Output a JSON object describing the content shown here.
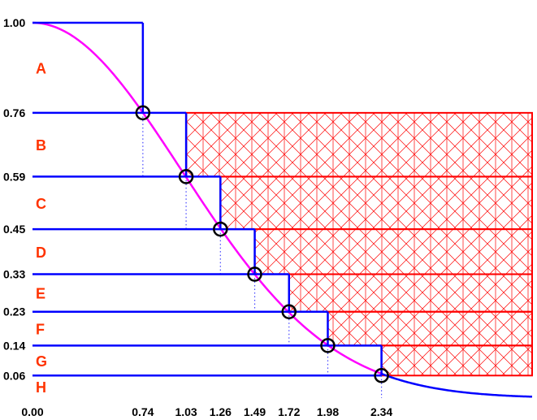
{
  "chart_data": {
    "type": "line",
    "title": "",
    "xlabel": "",
    "ylabel": "",
    "xlim": [
      0,
      3.35
    ],
    "ylim": [
      0,
      1.0
    ],
    "grid": false,
    "curve": {
      "name": "",
      "description_formula": "y = exp(-x^2/2)",
      "magenta_range": [
        0,
        2.34
      ],
      "blue_range": [
        2.34,
        3.35
      ]
    },
    "x_ticks": [
      "0.00",
      "0.74",
      "1.03",
      "1.26",
      "1.49",
      "1.72",
      "1.98",
      "2.34"
    ],
    "y_ticks": [
      "1.00",
      "0.76",
      "0.59",
      "0.45",
      "0.33",
      "0.23",
      "0.14",
      "0.06"
    ],
    "layers": [
      {
        "label": "A",
        "y_top": 1.0,
        "y_bottom": 0.76,
        "x_right": 0.74
      },
      {
        "label": "B",
        "y_top": 0.76,
        "y_bottom": 0.59,
        "x_right": 1.03
      },
      {
        "label": "C",
        "y_top": 0.59,
        "y_bottom": 0.45,
        "x_right": 1.26
      },
      {
        "label": "D",
        "y_top": 0.45,
        "y_bottom": 0.33,
        "x_right": 1.49
      },
      {
        "label": "E",
        "y_top": 0.33,
        "y_bottom": 0.23,
        "x_right": 1.72
      },
      {
        "label": "F",
        "y_top": 0.23,
        "y_bottom": 0.14,
        "x_right": 1.98
      },
      {
        "label": "G",
        "y_top": 0.14,
        "y_bottom": 0.06,
        "x_right": 2.34
      },
      {
        "label": "H",
        "y_top": 0.06,
        "y_bottom": 0.0,
        "x_right": 3.35
      }
    ],
    "points": [
      {
        "x": 0.74,
        "y": 0.76
      },
      {
        "x": 1.03,
        "y": 0.59
      },
      {
        "x": 1.26,
        "y": 0.45
      },
      {
        "x": 1.49,
        "y": 0.33
      },
      {
        "x": 1.72,
        "y": 0.23
      },
      {
        "x": 1.98,
        "y": 0.14
      },
      {
        "x": 2.34,
        "y": 0.06
      }
    ],
    "rejection_boxes": [
      {
        "x_from": 1.03,
        "y_top": 0.76,
        "y_bottom": 0.59
      },
      {
        "x_from": 1.26,
        "y_top": 0.59,
        "y_bottom": 0.45
      },
      {
        "x_from": 1.49,
        "y_top": 0.45,
        "y_bottom": 0.33
      },
      {
        "x_from": 1.72,
        "y_top": 0.33,
        "y_bottom": 0.23
      },
      {
        "x_from": 1.98,
        "y_top": 0.23,
        "y_bottom": 0.14
      },
      {
        "x_from": 2.34,
        "y_top": 0.14,
        "y_bottom": 0.06
      }
    ],
    "colors": {
      "curve_magenta": "#ff00ff",
      "curve_blue": "#0000ff",
      "layer_lines": "#0000ff",
      "boxes": "#ff0000",
      "region_labels": "#ff3300",
      "markers": "#000000",
      "dotted": "#4444ff"
    }
  }
}
